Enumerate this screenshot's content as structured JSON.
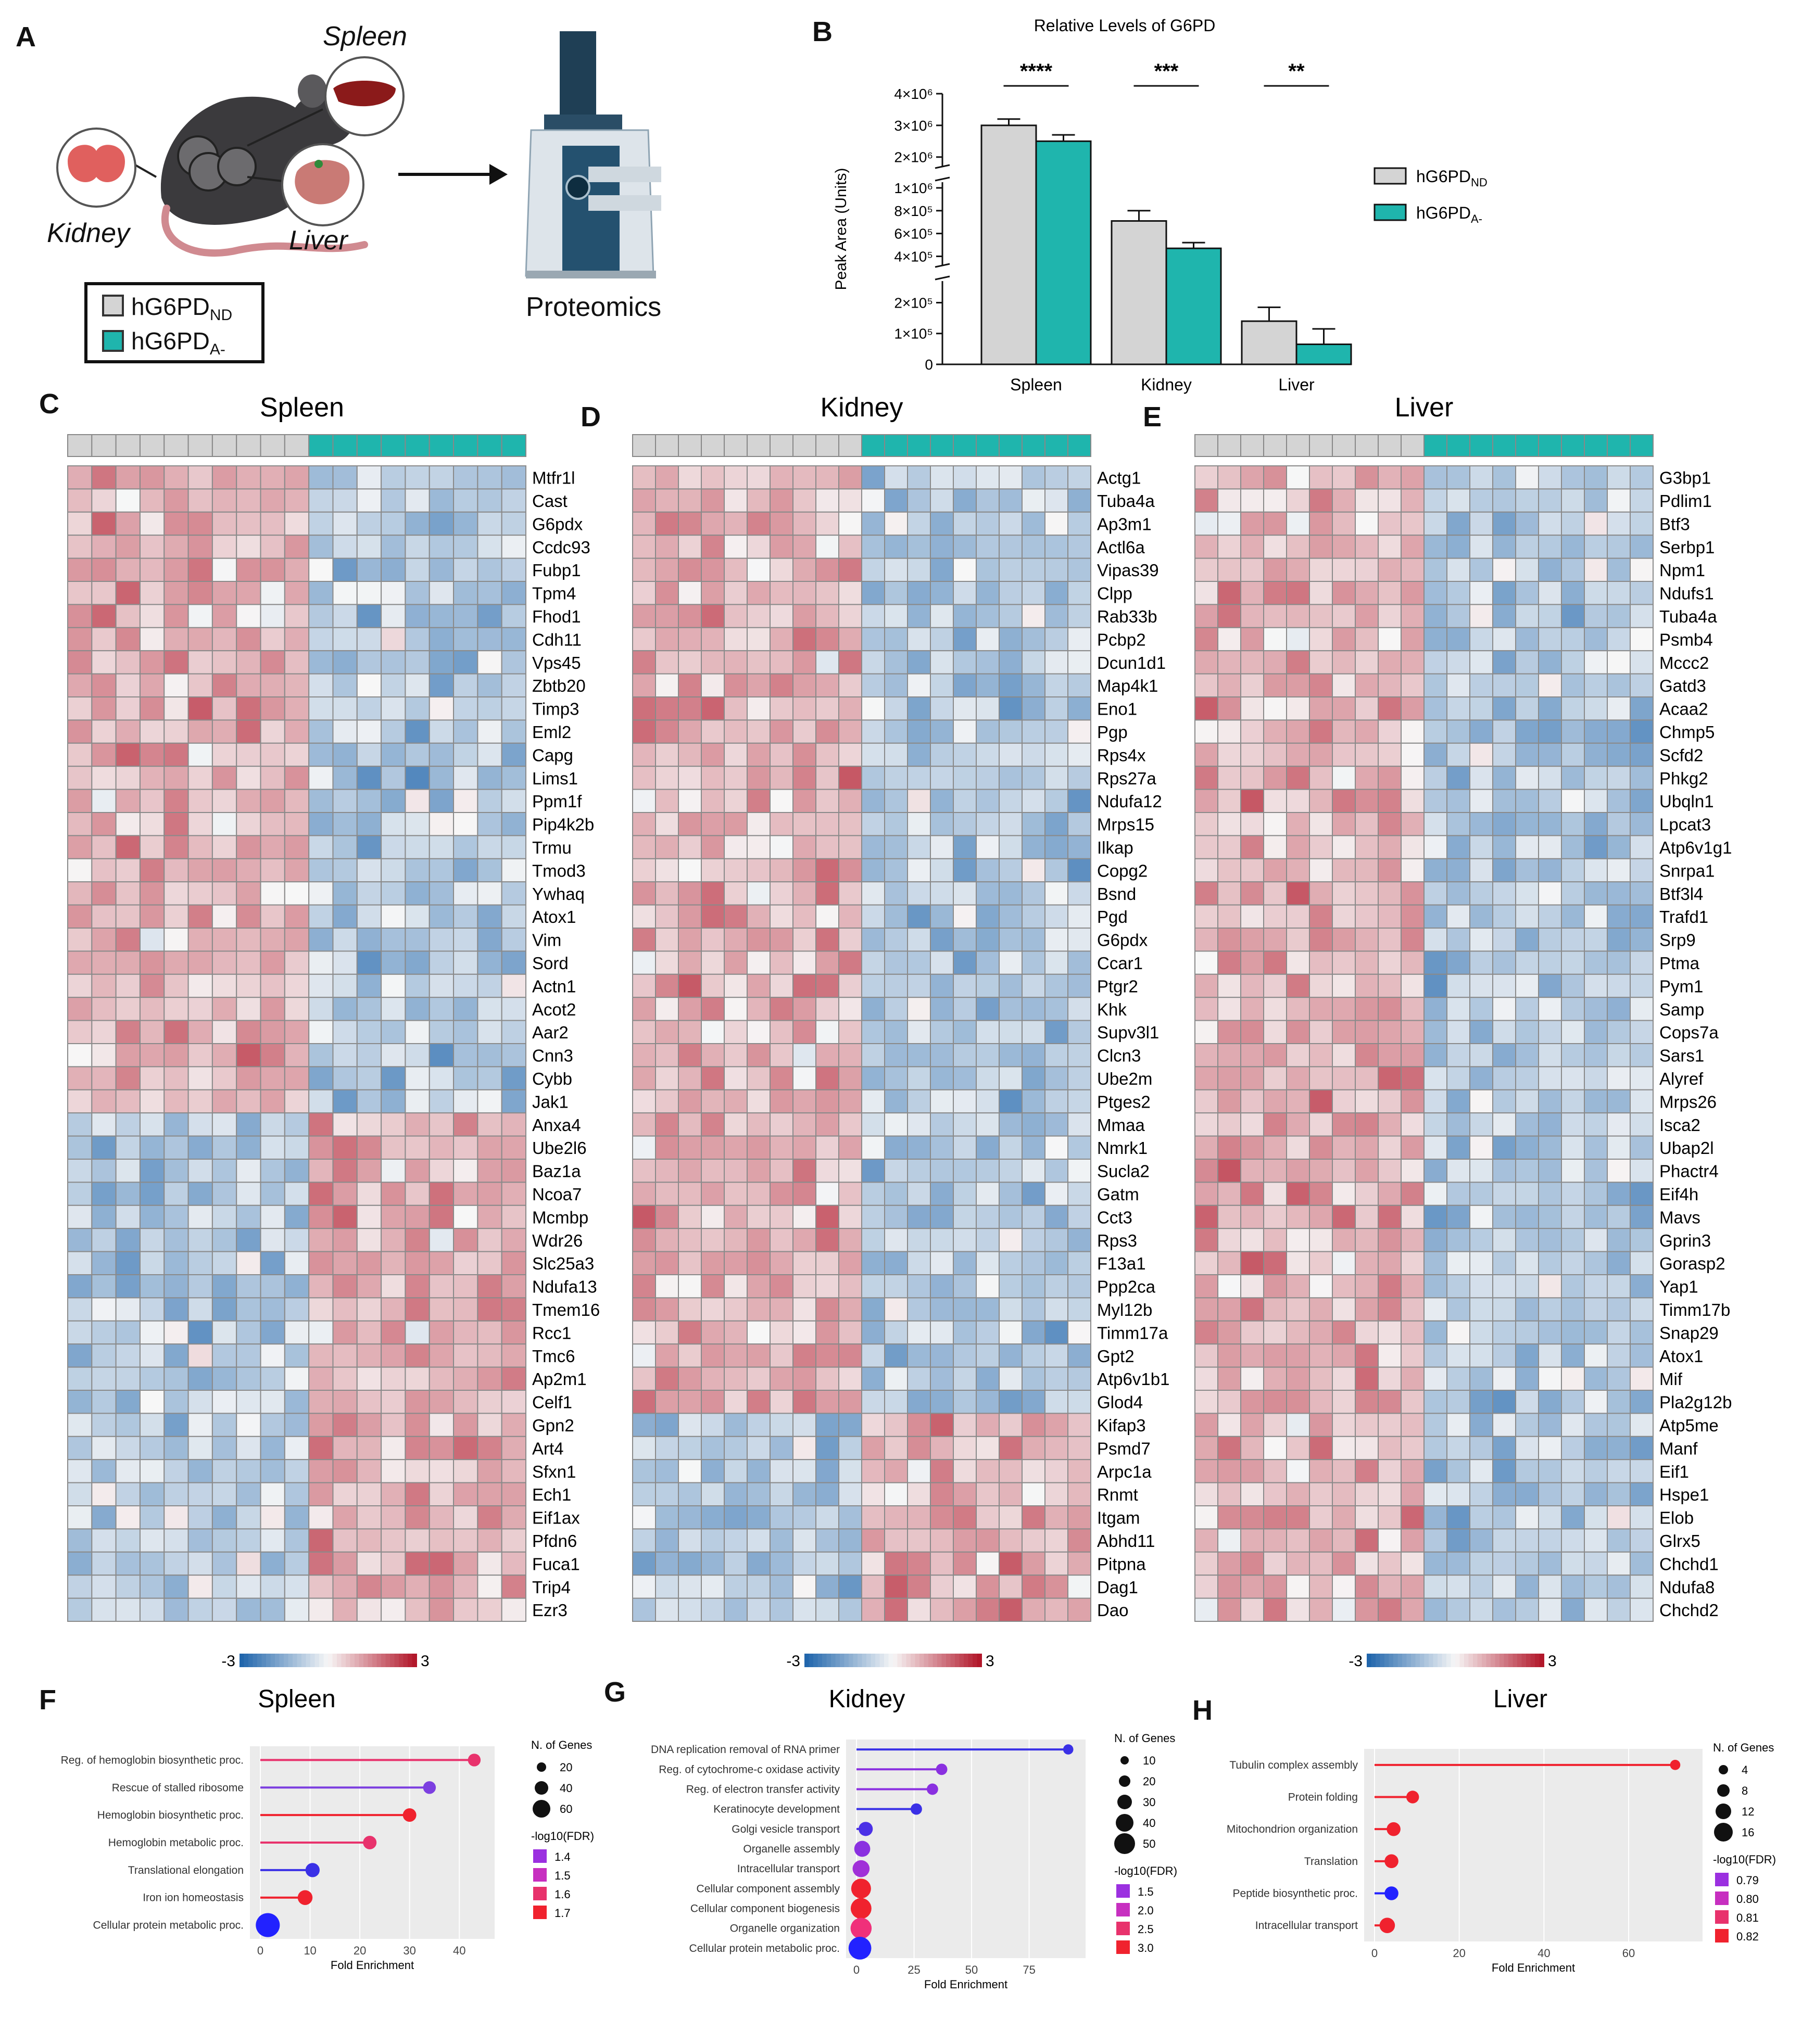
{
  "panels": {
    "A": "A",
    "B": "B",
    "C": "C",
    "D": "D",
    "E": "E",
    "F": "F",
    "G": "G",
    "H": "H"
  },
  "panelA": {
    "organs": {
      "spleen": "Spleen",
      "kidney": "Kidney",
      "liver": "Liver"
    },
    "instrument_label": "Proteomics",
    "legend": [
      {
        "base": "hG6PD",
        "sub": "ND",
        "color": "#d4d4d4"
      },
      {
        "base": "hG6PD",
        "sub": "A-",
        "color": "#1fb5ad"
      }
    ]
  },
  "colors": {
    "nd": "#d4d4d4",
    "a": "#1fb5ad",
    "cold": "#2166ac",
    "hot": "#b2182b"
  },
  "chart_data": {
    "type": "bar",
    "title": "Relative Levels of G6PD",
    "ylabel": "Peak Area (Units)",
    "xlabel": "",
    "categories": [
      "Spleen",
      "Kidney",
      "Liver"
    ],
    "series": [
      {
        "name": "hG6PD_ND",
        "values": [
          3000000,
          710000,
          140000
        ],
        "errors": [
          200000,
          90000,
          45000
        ]
      },
      {
        "name": "hG6PD_A-",
        "values": [
          2500000,
          470000,
          65000
        ],
        "errors": [
          200000,
          50000,
          50000
        ]
      }
    ],
    "significance": [
      "****",
      "***",
      "**"
    ],
    "axis_breaks": [
      [
        270000,
        320000
      ],
      [
        1050000,
        1700000
      ]
    ],
    "ytick_labels": [
      "0",
      "1×10⁵",
      "2×10⁵",
      "4×10⁵",
      "6×10⁵",
      "8×10⁵",
      "1×10⁶",
      "2×10⁶",
      "3×10⁶",
      "4×10⁶"
    ],
    "legend": [
      {
        "base": "hG6PD",
        "sub": "ND"
      },
      {
        "base": "hG6PD",
        "sub": "A-"
      }
    ]
  },
  "heatmaps": [
    {
      "id": "C",
      "title": "Spleen",
      "n_nd": 10,
      "n_a": 9,
      "n_up": 28,
      "scale_min": "-3",
      "scale_max": "3",
      "genes": [
        "Mtfr1l",
        "Cast",
        "G6pdx",
        "Ccdc93",
        "Fubp1",
        "Tpm4",
        "Fhod1",
        "Cdh11",
        "Vps45",
        "Zbtb20",
        "Timp3",
        "Eml2",
        "Capg",
        "Lims1",
        "Ppm1f",
        "Pip4k2b",
        "Trmu",
        "Tmod3",
        "Ywhaq",
        "Atox1",
        "Vim",
        "Sord",
        "Actn1",
        "Acot2",
        "Aar2",
        "Cnn3",
        "Cybb",
        "Jak1",
        "Anxa4",
        "Ube2l6",
        "Baz1a",
        "Ncoa7",
        "Mcmbp",
        "Wdr26",
        "Slc25a3",
        "Ndufa13",
        "Tmem16",
        "Rcc1",
        "Tmc6",
        "Ap2m1",
        "Celf1",
        "Gpn2",
        "Art4",
        "Sfxn1",
        "Ech1",
        "Eif1ax",
        "Pfdn6",
        "Fuca1",
        "Trip4",
        "Ezr3"
      ]
    },
    {
      "id": "D",
      "title": "Kidney",
      "n_nd": 10,
      "n_a": 10,
      "n_up": 41,
      "scale_min": "-3",
      "scale_max": "3",
      "genes": [
        "Actg1",
        "Tuba4a",
        "Ap3m1",
        "Actl6a",
        "Vipas39",
        "Clpp",
        "Rab33b",
        "Pcbp2",
        "Dcun1d1",
        "Map4k1",
        "Eno1",
        "Pgp",
        "Rps4x",
        "Rps27a",
        "Ndufa12",
        "Mrps15",
        "Ilkap",
        "Copg2",
        "Bsnd",
        "Pgd",
        "G6pdx",
        "Ccar1",
        "Ptgr2",
        "Khk",
        "Supv3l1",
        "Clcn3",
        "Ube2m",
        "Ptges2",
        "Mmaa",
        "Nmrk1",
        "Sucla2",
        "Gatm",
        "Cct3",
        "Rps3",
        "F13a1",
        "Ppp2ca",
        "Myl12b",
        "Timm17a",
        "Gpt2",
        "Atp6v1b1",
        "Glod4",
        "Kifap3",
        "Psmd7",
        "Arpc1a",
        "Rnmt",
        "Itgam",
        "Abhd11",
        "Pitpna",
        "Dag1",
        "Dao"
      ]
    },
    {
      "id": "E",
      "title": "Liver",
      "n_nd": 10,
      "n_a": 10,
      "n_up": 50,
      "scale_min": "-3",
      "scale_max": "3",
      "genes": [
        "G3bp1",
        "Pdlim1",
        "Btf3",
        "Serbp1",
        "Npm1",
        "Ndufs1",
        "Tuba4a",
        "Psmb4",
        "Mccc2",
        "Gatd3",
        "Acaa2",
        "Chmp5",
        "Scfd2",
        "Phkg2",
        "Ubqln1",
        "Lpcat3",
        "Atp6v1g1",
        "Snrpa1",
        "Btf3l4",
        "Trafd1",
        "Srp9",
        "Ptma",
        "Pym1",
        "Samp",
        "Cops7a",
        "Sars1",
        "Alyref",
        "Mrps26",
        "Isca2",
        "Ubap2l",
        "Phactr4",
        "Eif4h",
        "Mavs",
        "Gprin3",
        "Gorasp2",
        "Yap1",
        "Timm17b",
        "Snap29",
        "Atox1",
        "Mif",
        "Pla2g12b",
        "Atp5me",
        "Manf",
        "Eif1",
        "Hspe1",
        "Elob",
        "Glrx5",
        "Chchd1",
        "Ndufa8",
        "Chchd2"
      ]
    }
  ],
  "enrichment": [
    {
      "id": "F",
      "title": "Spleen",
      "xlabel": "Fold Enrichment",
      "xmax": 45,
      "xticks": [
        0,
        10,
        20,
        30,
        40
      ],
      "terms": [
        {
          "label": "Reg. of hemoglobin biosynthetic proc.",
          "fe": 43,
          "genes": 8,
          "color": "#e8326c"
        },
        {
          "label": "Rescue of stalled ribosome",
          "fe": 34,
          "genes": 8,
          "color": "#7c3fe0"
        },
        {
          "label": "Hemoglobin biosynthetic proc.",
          "fe": 30,
          "genes": 10,
          "color": "#f0222e"
        },
        {
          "label": "Hemoglobin metabolic proc.",
          "fe": 22,
          "genes": 10,
          "color": "#e8326c"
        },
        {
          "label": "Translational elongation",
          "fe": 10.5,
          "genes": 12,
          "color": "#3a30e6"
        },
        {
          "label": "Iron ion homeostasis",
          "fe": 9,
          "genes": 14,
          "color": "#f0222e"
        },
        {
          "label": "Cellular protein metabolic proc.",
          "fe": 1.5,
          "genes": 60,
          "color": "#2222ff"
        }
      ],
      "size_title": "N. of Genes",
      "size_legend": [
        {
          "label": "20",
          "r": 9
        },
        {
          "label": "40",
          "r": 13
        },
        {
          "label": "60",
          "r": 17
        }
      ],
      "color_title": "-log10(FDR)",
      "color_legend": [
        {
          "label": "1.4",
          "color": "#9b30e0"
        },
        {
          "label": "1.5",
          "color": "#c72fc0"
        },
        {
          "label": "1.6",
          "color": "#e8326c"
        },
        {
          "label": "1.7",
          "color": "#f0222e"
        }
      ]
    },
    {
      "id": "G",
      "title": "Kidney",
      "xlabel": "Fold Enrichment",
      "xmax": 95,
      "xticks": [
        0,
        25,
        50,
        75
      ],
      "terms": [
        {
          "label": "DNA replication removal of RNA primer",
          "fe": 92,
          "genes": 3,
          "color": "#3a30e6"
        },
        {
          "label": "Reg. of cytochrome-c oxidase activity",
          "fe": 37,
          "genes": 5,
          "color": "#8a30e0"
        },
        {
          "label": "Reg. of electron transfer activity",
          "fe": 33,
          "genes": 5,
          "color": "#8a30e0"
        },
        {
          "label": "Keratinocyte development",
          "fe": 26,
          "genes": 5,
          "color": "#3a30e6"
        },
        {
          "label": "Golgi vesicle transport",
          "fe": 4,
          "genes": 12,
          "color": "#4a30e6"
        },
        {
          "label": "Organelle assembly",
          "fe": 2.5,
          "genes": 18,
          "color": "#8a30e0"
        },
        {
          "label": "Intracellular transport",
          "fe": 2,
          "genes": 22,
          "color": "#a030d8"
        },
        {
          "label": "Cellular component assembly",
          "fe": 2,
          "genes": 35,
          "color": "#f0222e"
        },
        {
          "label": "Cellular component biogenesis",
          "fe": 2,
          "genes": 40,
          "color": "#f0222e"
        },
        {
          "label": "Organelle organization",
          "fe": 2,
          "genes": 42,
          "color": "#f0307a"
        },
        {
          "label": "Cellular protein metabolic proc.",
          "fe": 1.5,
          "genes": 52,
          "color": "#2222ff"
        }
      ],
      "size_title": "N. of Genes",
      "size_legend": [
        {
          "label": "10",
          "r": 8
        },
        {
          "label": "20",
          "r": 11
        },
        {
          "label": "30",
          "r": 14
        },
        {
          "label": "40",
          "r": 17
        },
        {
          "label": "50",
          "r": 20
        }
      ],
      "color_title": "-log10(FDR)",
      "color_legend": [
        {
          "label": "1.5",
          "color": "#9b30e0"
        },
        {
          "label": "2.0",
          "color": "#c72fc0"
        },
        {
          "label": "2.5",
          "color": "#e8326c"
        },
        {
          "label": "3.0",
          "color": "#f0222e"
        }
      ]
    },
    {
      "id": "H",
      "title": "Liver",
      "xlabel": "Fold Enrichment",
      "xmax": 75,
      "xticks": [
        0,
        20,
        40,
        60
      ],
      "terms": [
        {
          "label": "Tubulin complex assembly",
          "fe": 71,
          "genes": 3,
          "color": "#f0222e"
        },
        {
          "label": "Protein folding",
          "fe": 9,
          "genes": 8,
          "color": "#f0222e"
        },
        {
          "label": "Mitochondrion organization",
          "fe": 4.5,
          "genes": 11,
          "color": "#f0222e"
        },
        {
          "label": "Translation",
          "fe": 4,
          "genes": 11,
          "color": "#f0222e"
        },
        {
          "label": "Peptide biosynthetic proc.",
          "fe": 4,
          "genes": 11,
          "color": "#2222ff"
        },
        {
          "label": "Intracellular transport",
          "fe": 3,
          "genes": 16,
          "color": "#f0222e"
        }
      ],
      "size_title": "N. of Genes",
      "size_legend": [
        {
          "label": "4",
          "r": 9
        },
        {
          "label": "8",
          "r": 12
        },
        {
          "label": "12",
          "r": 15
        },
        {
          "label": "16",
          "r": 18
        }
      ],
      "color_title": "-log10(FDR)",
      "color_legend": [
        {
          "label": "0.79",
          "color": "#9b30e0"
        },
        {
          "label": "0.80",
          "color": "#c72fc0"
        },
        {
          "label": "0.81",
          "color": "#e8326c"
        },
        {
          "label": "0.82",
          "color": "#f0222e"
        }
      ]
    }
  ]
}
